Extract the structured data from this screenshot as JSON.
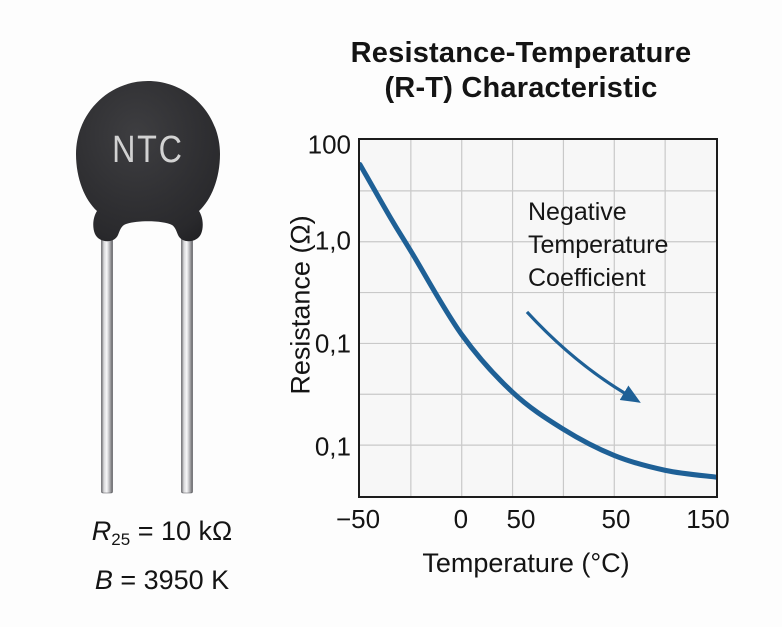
{
  "illustration": {
    "label": "NTC",
    "body_color": "#2e2e31",
    "label_color": "#d2d2d2",
    "lead_color": "#c9c9cc",
    "specs": [
      {
        "symbol": "R",
        "sub": "25",
        "rest": " = 10 kΩ"
      },
      {
        "symbol": "B",
        "sub": "",
        "rest": " = 3950 K"
      }
    ]
  },
  "chart_data": {
    "type": "line",
    "title_line1": "Resistance-Temperature",
    "title_line2": "(R-T) Characteristic",
    "xlabel": "Temperature (°C)",
    "ylabel": "Resistance (Ω)",
    "y_scale": "log",
    "x_ticks": [
      {
        "label": "−50",
        "pos": 0
      },
      {
        "label": "0",
        "pos": 0.2857
      },
      {
        "label": "50",
        "pos": 0.4528
      },
      {
        "label": "50",
        "pos": 0.7166
      },
      {
        "label": "150",
        "pos": 0.9722
      }
    ],
    "y_ticks": [
      {
        "label": "100",
        "pos": 0.02
      },
      {
        "label": "1,0",
        "pos": 0.2857
      },
      {
        "label": "0,1",
        "pos": 0.5714
      },
      {
        "label": "0,1",
        "pos": 0.8571
      }
    ],
    "grid": {
      "rows": 7,
      "cols": 7,
      "color": "#c9c9c9",
      "on": true
    },
    "curve": {
      "color": "#1e6096",
      "width": 5,
      "points_frac": [
        [
          0,
          0.069
        ],
        [
          0.086,
          0.219
        ],
        [
          0.147,
          0.319
        ],
        [
          0.286,
          0.547
        ],
        [
          0.428,
          0.708
        ],
        [
          0.569,
          0.811
        ],
        [
          0.714,
          0.886
        ],
        [
          0.858,
          0.928
        ],
        [
          1,
          0.947
        ]
      ]
    },
    "annotation": {
      "lines": [
        "Negative",
        "Temperature",
        "Coefficient"
      ]
    },
    "arrow": {
      "from": [
        0.469,
        0.483
      ],
      "control": [
        0.6,
        0.625
      ],
      "to": [
        0.745,
        0.712
      ],
      "color": "#1e6096"
    },
    "frame_color": "#1c1c1c",
    "plot_bg": "#f7f7f7"
  }
}
